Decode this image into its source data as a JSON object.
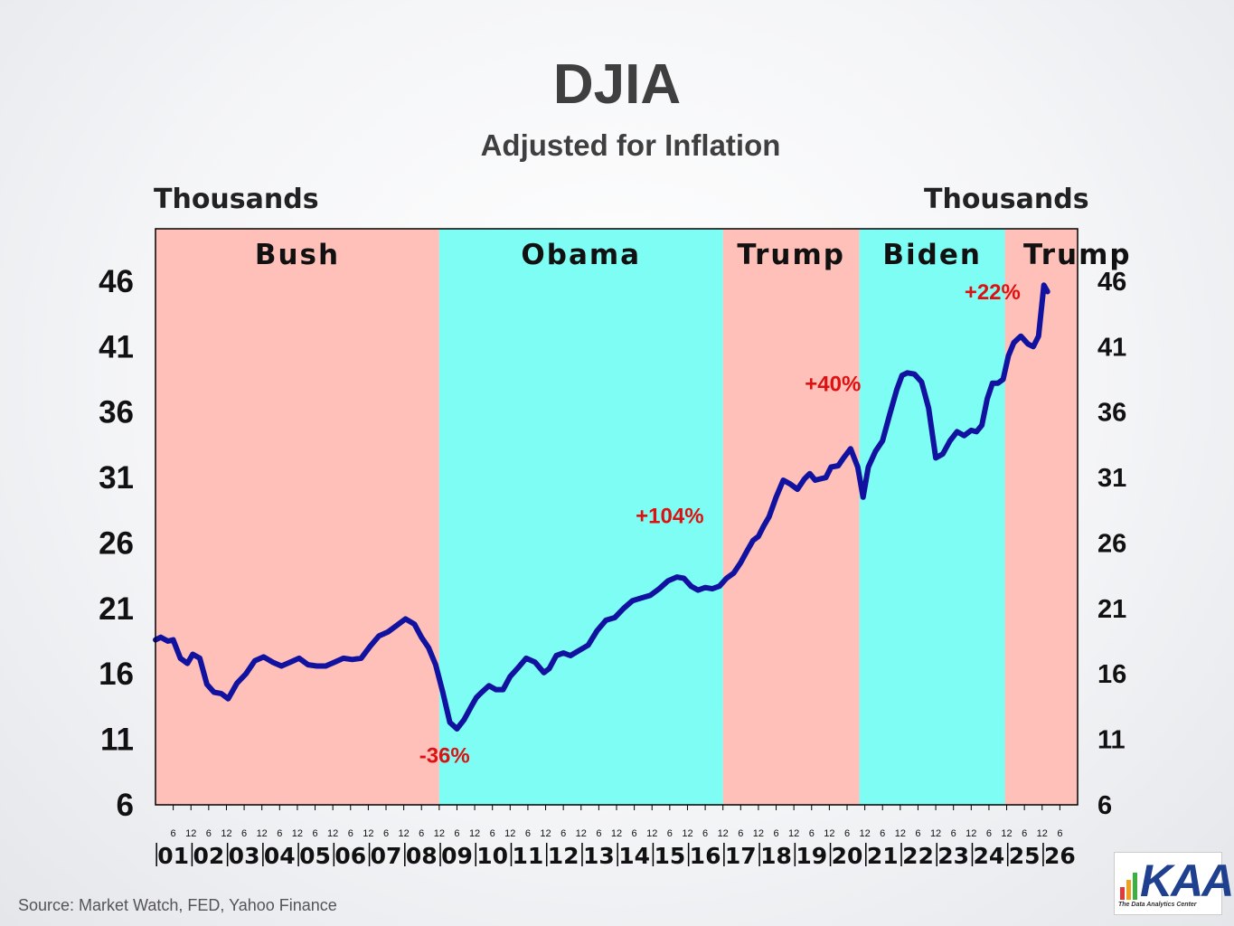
{
  "title": "DJIA",
  "subtitle": "Adjusted for Inflation",
  "unit_left": "Thousands",
  "unit_right": "Thousands",
  "source": "Source: Market Watch, FED, Yahoo Finance",
  "logo": {
    "text": "KAA",
    "tagline": "The Data Analytics Center"
  },
  "colors": {
    "republican": "#fec0b8",
    "democrat": "#7dfdf3",
    "line": "#1212a0",
    "annotation": "#dd1111"
  },
  "chart_data": {
    "type": "line",
    "title": "DJIA",
    "subtitle": "Adjusted for Inflation",
    "ylabel": "Thousands",
    "ylim": [
      6,
      50
    ],
    "xlim": [
      2000,
      2026
    ],
    "y_ticks": [
      6,
      11,
      16,
      21,
      26,
      31,
      36,
      41,
      46
    ],
    "x_year_labels": [
      "01",
      "02",
      "03",
      "04",
      "05",
      "06",
      "07",
      "08",
      "09",
      "10",
      "11",
      "12",
      "13",
      "14",
      "15",
      "16",
      "17",
      "18",
      "19",
      "20",
      "21",
      "22",
      "23",
      "24",
      "25",
      "26"
    ],
    "x_month_labels": [
      "6",
      "12"
    ],
    "periods": [
      {
        "name": "Bush",
        "party": "republican",
        "start": 2000.0,
        "end": 2008.0
      },
      {
        "name": "Obama",
        "party": "democrat",
        "start": 2008.0,
        "end": 2016.0
      },
      {
        "name": "Trump",
        "party": "republican",
        "start": 2016.0,
        "end": 2019.85
      },
      {
        "name": "Biden",
        "party": "democrat",
        "start": 2019.85,
        "end": 2023.95
      },
      {
        "name": "Trump",
        "party": "republican",
        "start": 2023.95,
        "end": 2026.0
      }
    ],
    "series": [
      {
        "name": "DJIA (inflation adjusted, thousands)",
        "x": [
          2000.0,
          2000.15,
          2000.35,
          2000.5,
          2000.7,
          2000.9,
          2001.05,
          2001.25,
          2001.45,
          2001.65,
          2001.85,
          2002.05,
          2002.3,
          2002.55,
          2002.8,
          2003.05,
          2003.3,
          2003.55,
          2003.8,
          2004.05,
          2004.3,
          2004.55,
          2004.8,
          2005.05,
          2005.3,
          2005.55,
          2005.8,
          2006.05,
          2006.3,
          2006.55,
          2006.8,
          2007.05,
          2007.3,
          2007.5,
          2007.7,
          2007.9,
          2008.1,
          2008.3,
          2008.5,
          2008.7,
          2008.9,
          2009.05,
          2009.2,
          2009.4,
          2009.6,
          2009.8,
          2010.0,
          2010.2,
          2010.45,
          2010.7,
          2010.95,
          2011.1,
          2011.3,
          2011.5,
          2011.7,
          2011.95,
          2012.2,
          2012.45,
          2012.7,
          2012.95,
          2013.2,
          2013.45,
          2013.7,
          2013.95,
          2014.2,
          2014.45,
          2014.7,
          2014.9,
          2015.1,
          2015.3,
          2015.5,
          2015.7,
          2015.9,
          2016.1,
          2016.3,
          2016.5,
          2016.7,
          2016.85,
          2017.0,
          2017.15,
          2017.3,
          2017.5,
          2017.7,
          2017.9,
          2018.1,
          2018.3,
          2018.45,
          2018.6,
          2018.75,
          2018.9,
          2019.05,
          2019.25,
          2019.4,
          2019.6,
          2019.8,
          2019.95,
          2020.1,
          2020.3,
          2020.5,
          2020.7,
          2020.9,
          2021.05,
          2021.2,
          2021.4,
          2021.6,
          2021.8,
          2022.0,
          2022.2,
          2022.4,
          2022.6,
          2022.8,
          2023.0,
          2023.15,
          2023.3,
          2023.45,
          2023.6,
          2023.75,
          2023.9,
          2024.05,
          2024.2,
          2024.4,
          2024.6,
          2024.75,
          2024.9,
          2025.05,
          2025.15
        ],
        "values": [
          18.6,
          18.8,
          18.5,
          18.6,
          17.2,
          16.8,
          17.5,
          17.2,
          15.2,
          14.6,
          14.5,
          14.1,
          15.3,
          16.0,
          17.0,
          17.3,
          16.9,
          16.6,
          16.9,
          17.2,
          16.7,
          16.6,
          16.6,
          16.9,
          17.2,
          17.1,
          17.2,
          18.1,
          18.9,
          19.2,
          19.7,
          20.2,
          19.8,
          18.8,
          18.0,
          16.7,
          14.6,
          12.3,
          11.8,
          12.5,
          13.5,
          14.2,
          14.6,
          15.1,
          14.8,
          14.8,
          15.8,
          16.4,
          17.2,
          16.9,
          16.1,
          16.4,
          17.4,
          17.6,
          17.4,
          17.8,
          18.2,
          19.3,
          20.1,
          20.3,
          21.0,
          21.6,
          21.8,
          22.0,
          22.5,
          23.1,
          23.4,
          23.3,
          22.7,
          22.4,
          22.6,
          22.5,
          22.7,
          23.3,
          23.7,
          24.5,
          25.5,
          26.2,
          26.5,
          27.3,
          28.0,
          29.5,
          30.8,
          30.5,
          30.1,
          30.9,
          31.3,
          30.8,
          30.9,
          31.0,
          31.8,
          31.9,
          32.5,
          33.2,
          31.8,
          29.5,
          31.8,
          33.0,
          33.8,
          35.8,
          37.7,
          38.8,
          39.0,
          38.9,
          38.3,
          36.3,
          32.5,
          32.8,
          33.8,
          34.5,
          34.2,
          34.6,
          34.5,
          35.0,
          37.0,
          38.2,
          38.2,
          38.5,
          40.3,
          41.3,
          41.8,
          41.2,
          41.0,
          41.8,
          45.7,
          45.2
        ]
      }
    ],
    "annotations": [
      {
        "text": "-36%",
        "x": 2008.15,
        "y": 9.2
      },
      {
        "text": "+104%",
        "x": 2014.5,
        "y": 27.5
      },
      {
        "text": "+40%",
        "x": 2019.1,
        "y": 37.6
      },
      {
        "text": "+22%",
        "x": 2023.6,
        "y": 44.6
      }
    ]
  }
}
